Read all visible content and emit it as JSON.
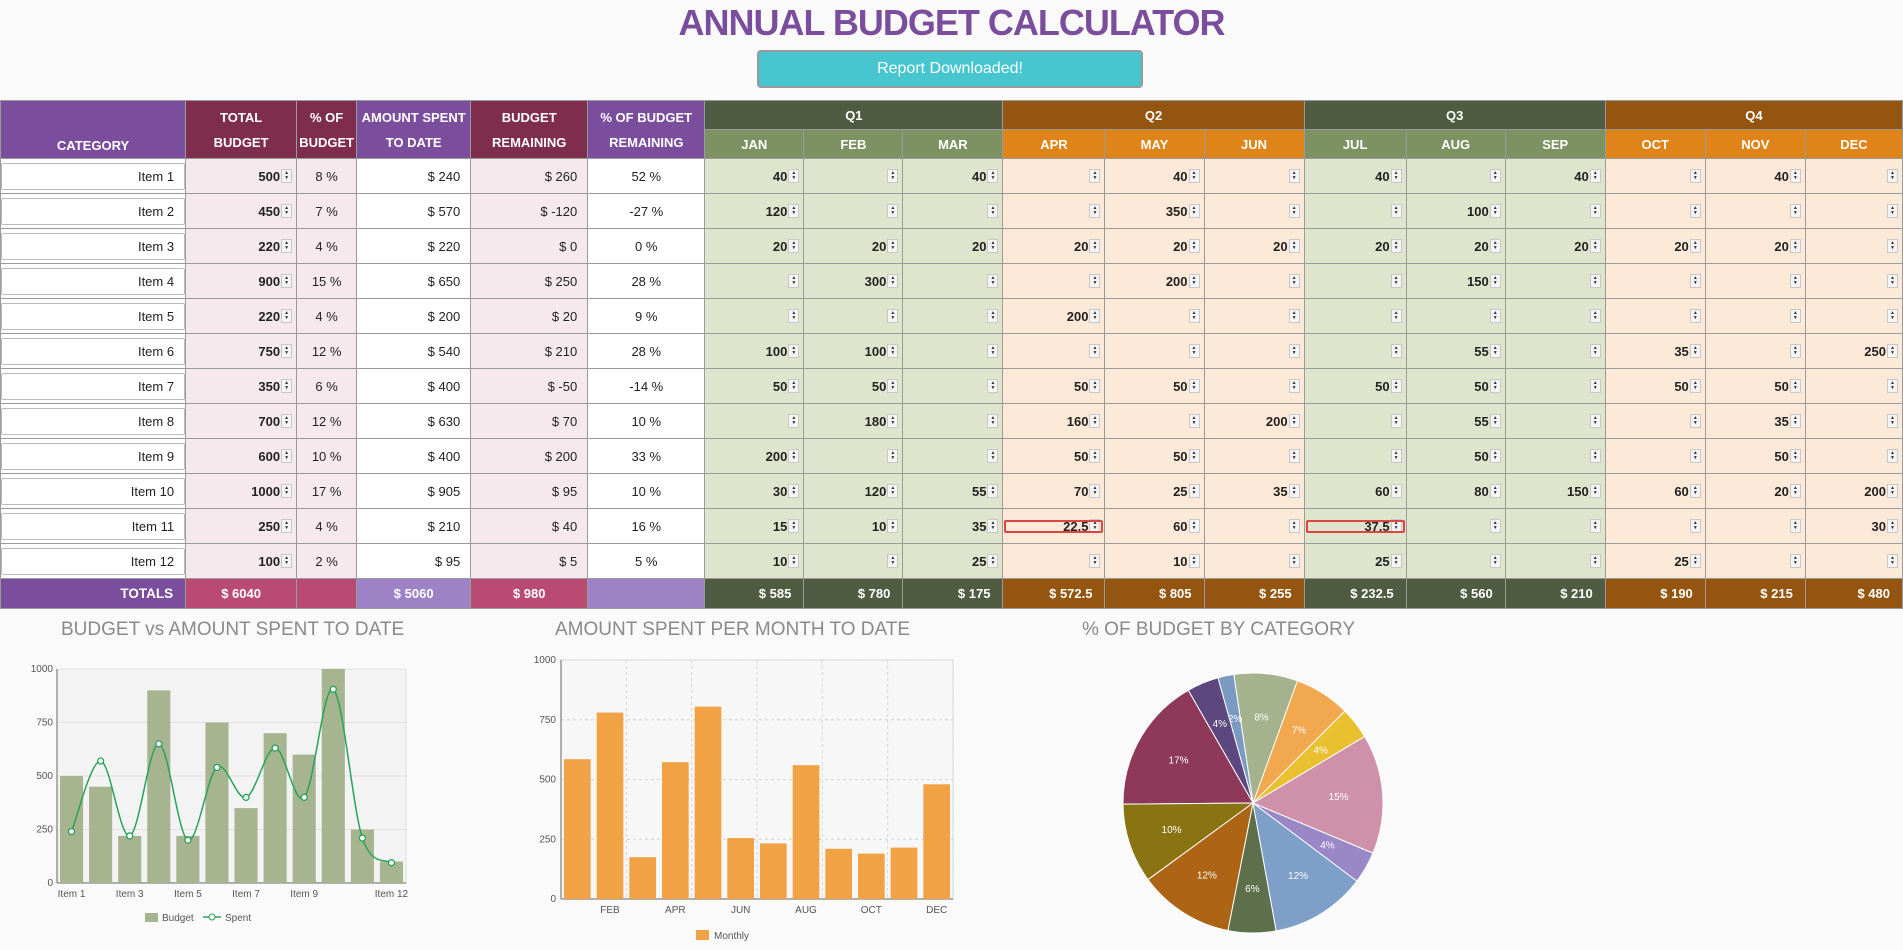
{
  "title": "ANNUAL BUDGET CALCULATOR",
  "report_button": "Report Downloaded!",
  "headers": {
    "category": "CATEGORY",
    "total_budget": [
      "TOTAL",
      "BUDGET"
    ],
    "pct_budget": [
      "% OF",
      "BUDGET"
    ],
    "amount_spent": [
      "AMOUNT SPENT",
      "TO DATE"
    ],
    "budget_remaining": [
      "BUDGET",
      "REMAINING"
    ],
    "pct_remaining": [
      "% OF BUDGET",
      "REMAINING"
    ],
    "quarters": [
      "Q1",
      "Q2",
      "Q3",
      "Q4"
    ],
    "months": [
      "JAN",
      "FEB",
      "MAR",
      "APR",
      "MAY",
      "JUN",
      "JUL",
      "AUG",
      "SEP",
      "OCT",
      "NOV",
      "DEC"
    ]
  },
  "rows": [
    {
      "category": "Item 1",
      "budget": "500",
      "pct": "8 %",
      "spent": "$ 240",
      "remaining": "$ 260",
      "pct_rem": "52 %",
      "months": [
        "40",
        "",
        "40",
        "",
        "40",
        "",
        "40",
        "",
        "40",
        "",
        "40",
        ""
      ]
    },
    {
      "category": "Item 2",
      "budget": "450",
      "pct": "7 %",
      "spent": "$ 570",
      "remaining": "$ -120",
      "pct_rem": "-27 %",
      "months": [
        "120",
        "",
        "",
        "",
        "350",
        "",
        "",
        "100",
        "",
        "",
        "",
        ""
      ]
    },
    {
      "category": "Item 3",
      "budget": "220",
      "pct": "4 %",
      "spent": "$ 220",
      "remaining": "$ 0",
      "pct_rem": "0 %",
      "months": [
        "20",
        "20",
        "20",
        "20",
        "20",
        "20",
        "20",
        "20",
        "20",
        "20",
        "20",
        ""
      ]
    },
    {
      "category": "Item 4",
      "budget": "900",
      "pct": "15 %",
      "spent": "$ 650",
      "remaining": "$ 250",
      "pct_rem": "28 %",
      "months": [
        "",
        "300",
        "",
        "",
        "200",
        "",
        "",
        "150",
        "",
        "",
        "",
        ""
      ]
    },
    {
      "category": "Item 5",
      "budget": "220",
      "pct": "4 %",
      "spent": "$ 200",
      "remaining": "$ 20",
      "pct_rem": "9 %",
      "months": [
        "",
        "",
        "",
        "200",
        "",
        "",
        "",
        "",
        "",
        "",
        "",
        ""
      ]
    },
    {
      "category": "Item 6",
      "budget": "750",
      "pct": "12 %",
      "spent": "$ 540",
      "remaining": "$ 210",
      "pct_rem": "28 %",
      "months": [
        "100",
        "100",
        "",
        "",
        "",
        "",
        "",
        "55",
        "",
        "35",
        "",
        "250"
      ]
    },
    {
      "category": "Item 7",
      "budget": "350",
      "pct": "6 %",
      "spent": "$ 400",
      "remaining": "$ -50",
      "pct_rem": "-14 %",
      "months": [
        "50",
        "50",
        "",
        "50",
        "50",
        "",
        "50",
        "50",
        "",
        "50",
        "50",
        ""
      ]
    },
    {
      "category": "Item 8",
      "budget": "700",
      "pct": "12 %",
      "spent": "$ 630",
      "remaining": "$ 70",
      "pct_rem": "10 %",
      "months": [
        "",
        "180",
        "",
        "160",
        "",
        "200",
        "",
        "55",
        "",
        "",
        "35",
        ""
      ]
    },
    {
      "category": "Item 9",
      "budget": "600",
      "pct": "10 %",
      "spent": "$ 400",
      "remaining": "$ 200",
      "pct_rem": "33 %",
      "months": [
        "200",
        "",
        "",
        "50",
        "50",
        "",
        "",
        "50",
        "",
        "",
        "50",
        ""
      ]
    },
    {
      "category": "Item 10",
      "budget": "1000",
      "pct": "17 %",
      "spent": "$ 905",
      "remaining": "$ 95",
      "pct_rem": "10 %",
      "months": [
        "30",
        "120",
        "55",
        "70",
        "25",
        "35",
        "60",
        "80",
        "150",
        "60",
        "20",
        "200"
      ]
    },
    {
      "category": "Item 11",
      "budget": "250",
      "pct": "4 %",
      "spent": "$ 210",
      "remaining": "$ 40",
      "pct_rem": "16 %",
      "months": [
        "15",
        "10",
        "35",
        "22.5",
        "60",
        "",
        "37.5",
        "",
        "",
        "",
        "",
        "30"
      ]
    },
    {
      "category": "Item 12",
      "budget": "100",
      "pct": "2 %",
      "spent": "$ 95",
      "remaining": "$ 5",
      "pct_rem": "5 %",
      "months": [
        "10",
        "",
        "25",
        "",
        "10",
        "",
        "25",
        "",
        "",
        "25",
        "",
        ""
      ]
    }
  ],
  "totals": {
    "label": "TOTALS",
    "budget": "$ 6040",
    "spent": "$ 5060",
    "remaining": "$ 980",
    "months": [
      "$ 585",
      "$ 780",
      "$ 175",
      "$ 572.5",
      "$ 805",
      "$ 255",
      "$ 232.5",
      "$ 560",
      "$ 210",
      "$ 190",
      "$ 215",
      "$ 480"
    ]
  },
  "colors": {
    "title": "#7a4e9d",
    "button": "#47c6cf",
    "budget_bar": "#a6b48f",
    "spent_line": "#27a35a",
    "monthly_bar": "#f1a245"
  },
  "chart_data": [
    {
      "type": "bar",
      "title": "BUDGET vs AMOUNT SPENT TO DATE",
      "categories": [
        "Item 1",
        "Item 2",
        "Item 3",
        "Item 4",
        "Item 5",
        "Item 6",
        "Item 7",
        "Item 8",
        "Item 9",
        "Item 10",
        "Item 11",
        "Item 12"
      ],
      "tick_labels": [
        "Item 1",
        "Item 3",
        "Item 5",
        "Item 7",
        "Item 9",
        "Item 12"
      ],
      "series": [
        {
          "name": "Budget",
          "kind": "bar",
          "values": [
            500,
            450,
            220,
            900,
            220,
            750,
            350,
            700,
            600,
            1000,
            250,
            100
          ]
        },
        {
          "name": "Spent",
          "kind": "line",
          "values": [
            240,
            570,
            220,
            650,
            200,
            540,
            400,
            630,
            400,
            905,
            210,
            95
          ]
        }
      ],
      "ylim": [
        0,
        1000
      ],
      "yticks": [
        0,
        250,
        500,
        750,
        1000
      ],
      "legend": "bottom"
    },
    {
      "type": "bar",
      "title": "AMOUNT SPENT PER MONTH TO DATE",
      "categories": [
        "JAN",
        "FEB",
        "MAR",
        "APR",
        "MAY",
        "JUN",
        "JUL",
        "AUG",
        "SEP",
        "OCT",
        "NOV",
        "DEC"
      ],
      "tick_labels": [
        "FEB",
        "APR",
        "JUN",
        "AUG",
        "OCT",
        "DEC"
      ],
      "series": [
        {
          "name": "Monthly",
          "values": [
            585,
            780,
            175,
            572.5,
            805,
            255,
            232.5,
            560,
            210,
            190,
            215,
            480
          ]
        }
      ],
      "ylim": [
        0,
        1000
      ],
      "yticks": [
        0,
        250,
        500,
        750,
        1000
      ],
      "legend": "bottom"
    },
    {
      "type": "pie",
      "title": "% OF BUDGET BY CATEGORY",
      "slices": [
        {
          "label": "Item 1",
          "value": 8,
          "text": "8%",
          "color": "#a5b28e"
        },
        {
          "label": "Item 12",
          "value": 2,
          "text": "2%",
          "color": "#7b9ac2"
        },
        {
          "label": "Item 11",
          "value": 4,
          "text": "4%",
          "color": "#5d477f"
        },
        {
          "label": "Item 10",
          "value": 17,
          "text": "17%",
          "color": "#8e3959"
        },
        {
          "label": "Item 9",
          "value": 10,
          "text": "10%",
          "color": "#8a7412"
        },
        {
          "label": "Item 8",
          "value": 12,
          "text": "12%",
          "color": "#ad6414"
        },
        {
          "label": "Item 7",
          "value": 6,
          "text": "6%",
          "color": "#5e6f4c"
        },
        {
          "label": "Item 6",
          "value": 12,
          "text": "12%",
          "color": "#7e9fc8"
        },
        {
          "label": "Item 5",
          "value": 4,
          "text": "4%",
          "color": "#9a88c6"
        },
        {
          "label": "Item 4",
          "value": 15,
          "text": "15%",
          "color": "#cf91a9"
        },
        {
          "label": "Item 3",
          "value": 4,
          "text": "4%",
          "color": "#e8c030"
        },
        {
          "label": "Item 2",
          "value": 7,
          "text": "7%",
          "color": "#f2a84f"
        }
      ]
    }
  ]
}
